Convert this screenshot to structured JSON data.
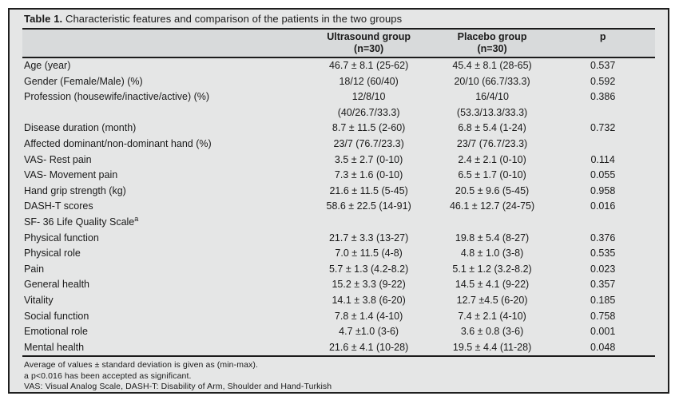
{
  "colors": {
    "page_background": "#ffffff",
    "box_background": "#e5e6e6",
    "header_band_background": "#d8dadb",
    "border": "#1f1f1f",
    "text": "#1a1a1a"
  },
  "table": {
    "title_label": "Table 1.",
    "title_text": " Characteristic features and comparison of the patients in the two groups",
    "columns": {
      "label": "",
      "ultrasound": {
        "line1": "Ultrasound group",
        "line2": "(n=30)"
      },
      "placebo": {
        "line1": "Placebo group",
        "line2": "(n=30)"
      },
      "p": "p"
    },
    "rows": [
      {
        "label": "Age (year)",
        "ultrasound": "46.7 ± 8.1 (25-62)",
        "placebo": "45.4 ± 8.1 (28-65)",
        "p": "0.537"
      },
      {
        "label": "Gender (Female/Male) (%)",
        "ultrasound": "18/12 (60/40)",
        "placebo": "20/10 (66.7/33.3)",
        "p": "0.592"
      },
      {
        "label": "Profession (housewife/inactive/active) (%)",
        "ultrasound": "12/8/10",
        "placebo": "16/4/10",
        "p": "0.386"
      },
      {
        "label": "",
        "ultrasound": "(40/26.7/33.3)",
        "placebo": "(53.3/13.3/33.3)",
        "p": ""
      },
      {
        "label": "Disease duration (month)",
        "ultrasound": "8.7 ± 11.5 (2-60)",
        "placebo": "6.8 ± 5.4 (1-24)",
        "p": "0.732"
      },
      {
        "label": "Affected dominant/non-dominant hand (%)",
        "ultrasound": "23/7 (76.7/23.3)",
        "placebo": "23/7 (76.7/23.3)",
        "p": ""
      },
      {
        "label": "VAS- Rest pain",
        "ultrasound": "3.5 ± 2.7 (0-10)",
        "placebo": "2.4 ± 2.1 (0-10)",
        "p": "0.114"
      },
      {
        "label": "VAS- Movement pain",
        "ultrasound": "7.3 ± 1.6 (0-10)",
        "placebo": "6.5 ± 1.7 (0-10)",
        "p": "0.055"
      },
      {
        "label": "Hand grip strength (kg)",
        "ultrasound": "21.6 ± 11.5 (5-45)",
        "placebo": "20.5 ± 9.6 (5-45)",
        "p": "0.958"
      },
      {
        "label": "DASH-T scores",
        "ultrasound": "58.6 ± 22.5 (14-91)",
        "placebo": "46.1 ± 12.7 (24-75)",
        "p": "0.016"
      },
      {
        "label": "SF- 36 Life Quality Scale",
        "sup": "a",
        "ultrasound": "",
        "placebo": "",
        "p": ""
      },
      {
        "label": "Physical function",
        "ultrasound": "21.7 ± 3.3 (13-27)",
        "placebo": "19.8 ± 5.4 (8-27)",
        "p": "0.376"
      },
      {
        "label": "Physical role",
        "ultrasound": "7.0 ± 11.5 (4-8)",
        "placebo": "4.8 ± 1.0 (3-8)",
        "p": "0.535"
      },
      {
        "label": "Pain",
        "ultrasound": "5.7 ± 1.3 (4.2-8.2)",
        "placebo": "5.1 ± 1.2 (3.2-8.2)",
        "p": "0.023"
      },
      {
        "label": "General health",
        "ultrasound": "15.2 ± 3.3 (9-22)",
        "placebo": "14.5 ± 4.1 (9-22)",
        "p": "0.357"
      },
      {
        "label": "Vitality",
        "ultrasound": "14.1 ± 3.8 (6-20)",
        "placebo": "12.7 ±4.5 (6-20)",
        "p": "0.185"
      },
      {
        "label": "Social function",
        "ultrasound": "7.8 ± 1.4 (4-10)",
        "placebo": "7.4 ± 2.1 (4-10)",
        "p": "0.758"
      },
      {
        "label": "Emotional role",
        "ultrasound": "4.7 ±1.0 (3-6)",
        "placebo": "3.6 ± 0.8 (3-6)",
        "p": "0.001"
      },
      {
        "label": "Mental health",
        "ultrasound": "21.6 ± 4.1 (10-28)",
        "placebo": "19.5 ± 4.4 (11-28)",
        "p": "0.048"
      }
    ],
    "footnotes": [
      "Average of values ± standard deviation is given as (min-max).",
      "a p<0.016 has been accepted as significant.",
      "VAS: Visual Analog Scale, DASH-T: Disability of Arm, Shoulder and Hand-Turkish"
    ]
  }
}
